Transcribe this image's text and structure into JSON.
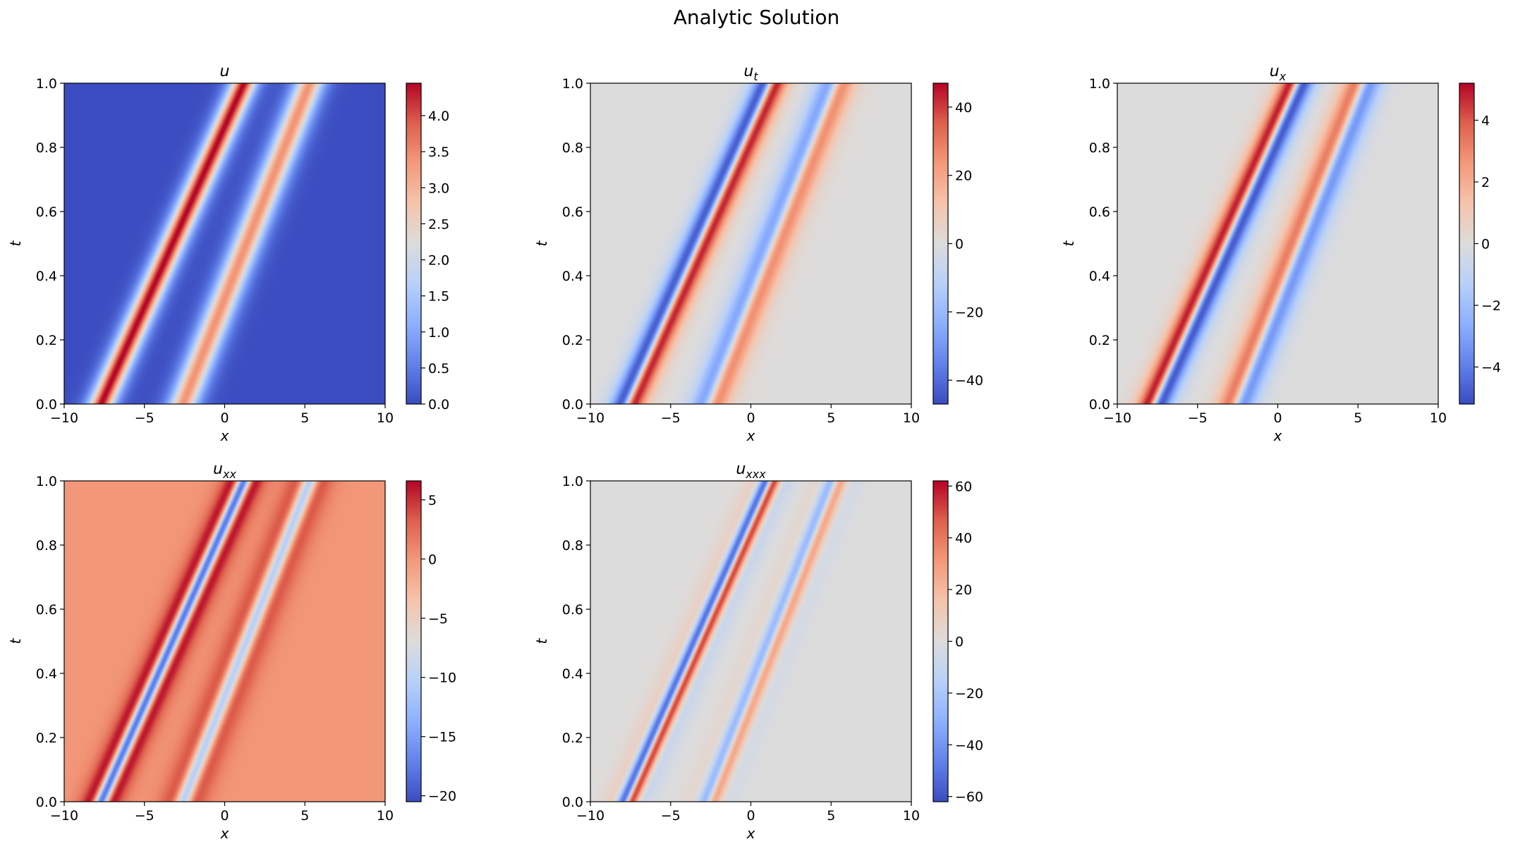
{
  "figure": {
    "suptitle": "Analytic Solution"
  },
  "colormap": {
    "name": "coolwarm",
    "stops": [
      "#3b4cc0",
      "#6282ea",
      "#8db0fe",
      "#b8d0f9",
      "#dddcdc",
      "#f5c4ac",
      "#f49a7b",
      "#de604d",
      "#b40426"
    ]
  },
  "chart_data": [
    {
      "type": "heatmap",
      "title": "u",
      "title_sub": "",
      "xlabel": "x",
      "ylabel": "t",
      "xlim": [
        -10,
        10
      ],
      "ylim": [
        0,
        1
      ],
      "xticks": [
        -10,
        -5,
        0,
        5,
        10
      ],
      "xtick_labels": [
        "−10",
        "−5",
        "0",
        "5",
        "10"
      ],
      "yticks": [
        0,
        0.2,
        0.4,
        0.6,
        0.8,
        1.0
      ],
      "ytick_labels": [
        "0.0",
        "0.2",
        "0.4",
        "0.6",
        "0.8",
        "1.0"
      ],
      "colorbar": {
        "vmin": 0,
        "vmax": 4.45,
        "ticks": [
          0,
          0.5,
          1,
          1.5,
          2,
          2.5,
          3,
          3.5,
          4
        ],
        "tick_labels": [
          "0.0",
          "0.5",
          "1.0",
          "1.5",
          "2.0",
          "2.5",
          "3.0",
          "3.5",
          "4.0"
        ]
      },
      "field": "u"
    },
    {
      "type": "heatmap",
      "title": "u",
      "title_sub": "t",
      "xlabel": "x",
      "ylabel": "t",
      "xlim": [
        -10,
        10
      ],
      "ylim": [
        0,
        1
      ],
      "xticks": [
        -10,
        -5,
        0,
        5,
        10
      ],
      "xtick_labels": [
        "−10",
        "−5",
        "0",
        "5",
        "10"
      ],
      "yticks": [
        0,
        0.2,
        0.4,
        0.6,
        0.8,
        1.0
      ],
      "ytick_labels": [
        "0.0",
        "0.2",
        "0.4",
        "0.6",
        "0.8",
        "1.0"
      ],
      "colorbar": {
        "vmin": -47,
        "vmax": 47,
        "ticks": [
          -40,
          -20,
          0,
          20,
          40
        ],
        "tick_labels": [
          "−40",
          "−20",
          "0",
          "20",
          "40"
        ]
      },
      "field": "ut"
    },
    {
      "type": "heatmap",
      "title": "u",
      "title_sub": "x",
      "xlabel": "x",
      "ylabel": "t",
      "xlim": [
        -10,
        10
      ],
      "ylim": [
        0,
        1
      ],
      "xticks": [
        -10,
        -5,
        0,
        5,
        10
      ],
      "xtick_labels": [
        "−10",
        "−5",
        "0",
        "5",
        "10"
      ],
      "yticks": [
        0,
        0.2,
        0.4,
        0.6,
        0.8,
        1.0
      ],
      "ytick_labels": [
        "0.0",
        "0.2",
        "0.4",
        "0.6",
        "0.8",
        "1.0"
      ],
      "colorbar": {
        "vmin": -5.2,
        "vmax": 5.2,
        "ticks": [
          -4,
          -2,
          0,
          2,
          4
        ],
        "tick_labels": [
          "−4",
          "−2",
          "0",
          "2",
          "4"
        ]
      },
      "field": "ux"
    },
    {
      "type": "heatmap",
      "title": "u",
      "title_sub": "xx",
      "xlabel": "x",
      "ylabel": "t",
      "xlim": [
        -10,
        10
      ],
      "ylim": [
        0,
        1
      ],
      "xticks": [
        -10,
        -5,
        0,
        5,
        10
      ],
      "xtick_labels": [
        "−10",
        "−5",
        "0",
        "5",
        "10"
      ],
      "yticks": [
        0,
        0.2,
        0.4,
        0.6,
        0.8,
        1.0
      ],
      "ytick_labels": [
        "0.0",
        "0.2",
        "0.4",
        "0.6",
        "0.8",
        "1.0"
      ],
      "colorbar": {
        "vmin": -20.5,
        "vmax": 6.6,
        "ticks": [
          -20,
          -15,
          -10,
          -5,
          0,
          5
        ],
        "tick_labels": [
          "−20",
          "−15",
          "−10",
          "−5",
          "0",
          "5"
        ]
      },
      "field": "uxx"
    },
    {
      "type": "heatmap",
      "title": "u",
      "title_sub": "xxx",
      "xlabel": "x",
      "ylabel": "t",
      "xlim": [
        -10,
        10
      ],
      "ylim": [
        0,
        1
      ],
      "xticks": [
        -10,
        -5,
        0,
        5,
        10
      ],
      "xtick_labels": [
        "−10",
        "−5",
        "0",
        "5",
        "10"
      ],
      "yticks": [
        0,
        0.2,
        0.4,
        0.6,
        0.8,
        1.0
      ],
      "ytick_labels": [
        "0.0",
        "0.2",
        "0.4",
        "0.6",
        "0.8",
        "1.0"
      ],
      "colorbar": {
        "vmin": -62,
        "vmax": 62,
        "ticks": [
          -60,
          -40,
          -20,
          0,
          20,
          40,
          60
        ],
        "tick_labels": [
          "−60",
          "−40",
          "−20",
          "0",
          "20",
          "40",
          "60"
        ]
      },
      "field": "uxxx"
    }
  ]
}
